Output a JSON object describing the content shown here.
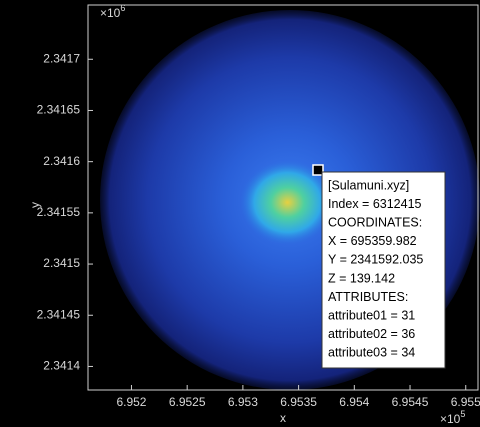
{
  "chart_data": {
    "type": "pointcloud",
    "xlabel": "x",
    "ylabel": "y",
    "x_exponent": {
      "base": "×10",
      "power": "5"
    },
    "y_exponent": {
      "base": "×10",
      "power": "6"
    },
    "xlim": [
      6.95161,
      6.95511
    ],
    "xticks": [
      6.952,
      6.9525,
      6.953,
      6.9535,
      6.954,
      6.9545,
      6.955
    ],
    "ylim": [
      2.341377,
      2.341753
    ],
    "yticks": [
      2.3414,
      2.34145,
      2.3415,
      2.34155,
      2.3416,
      2.34165,
      2.3417
    ],
    "datatip": [
      "[Sulamuni.xyz]",
      "Index = 6312415",
      "COORDINATES:",
      "X = 695359.982",
      "Y = 2341592.035",
      "Z = 139.142",
      "ATTRIBUTES:",
      "attribute01 = 31",
      "attribute02 = 36",
      "attribute03 = 34"
    ]
  }
}
